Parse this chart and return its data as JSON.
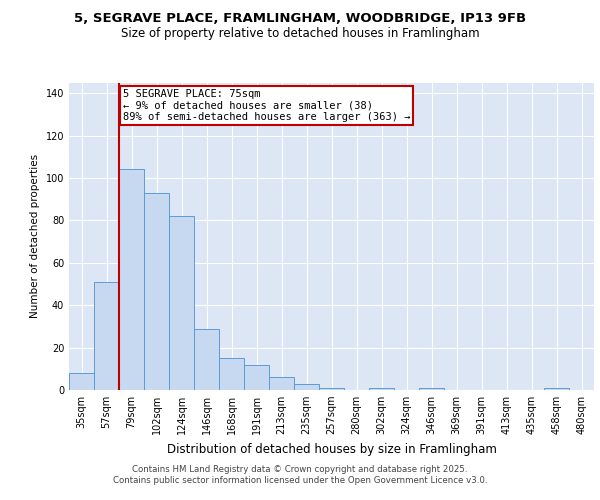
{
  "title1": "5, SEGRAVE PLACE, FRAMLINGHAM, WOODBRIDGE, IP13 9FB",
  "title2": "Size of property relative to detached houses in Framlingham",
  "xlabel": "Distribution of detached houses by size in Framlingham",
  "ylabel": "Number of detached properties",
  "categories": [
    "35sqm",
    "57sqm",
    "79sqm",
    "102sqm",
    "124sqm",
    "146sqm",
    "168sqm",
    "191sqm",
    "213sqm",
    "235sqm",
    "257sqm",
    "280sqm",
    "302sqm",
    "324sqm",
    "346sqm",
    "369sqm",
    "391sqm",
    "413sqm",
    "435sqm",
    "458sqm",
    "480sqm"
  ],
  "values": [
    8,
    51,
    104,
    93,
    82,
    29,
    15,
    12,
    6,
    3,
    1,
    0,
    1,
    0,
    1,
    0,
    0,
    0,
    0,
    1,
    0
  ],
  "bar_color": "#c6d9f0",
  "bar_edge_color": "#5b9bd5",
  "vline_x": 1.5,
  "vline_color": "#c00000",
  "annotation_text": "5 SEGRAVE PLACE: 75sqm\n← 9% of detached houses are smaller (38)\n89% of semi-detached houses are larger (363) →",
  "annotation_box_color": "#ffffff",
  "annotation_box_edge": "#c00000",
  "ylim": [
    0,
    145
  ],
  "yticks": [
    0,
    20,
    40,
    60,
    80,
    100,
    120,
    140
  ],
  "background_color": "#dce6f5",
  "fig_background_color": "#ffffff",
  "grid_color": "#ffffff",
  "footer1": "Contains HM Land Registry data © Crown copyright and database right 2025.",
  "footer2": "Contains public sector information licensed under the Open Government Licence v3.0.",
  "title1_fontsize": 9.5,
  "title2_fontsize": 8.5,
  "xlabel_fontsize": 8.5,
  "ylabel_fontsize": 7.5,
  "tick_fontsize": 7,
  "footer_fontsize": 6.2,
  "annotation_fontsize": 7.5
}
